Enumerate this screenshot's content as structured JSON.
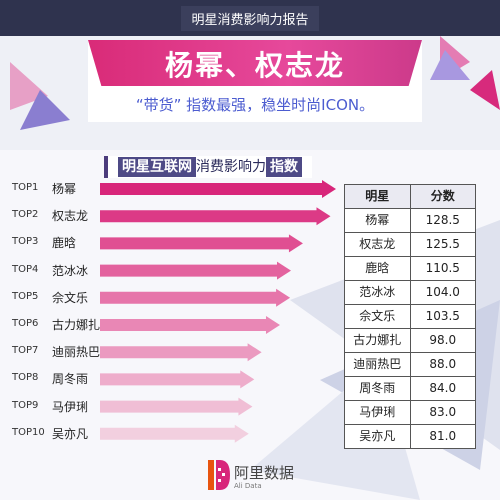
{
  "header": {
    "report_title": "明星消费影响力报告",
    "headline": "杨幂、权志龙",
    "subline": "“带货” 指数最强，稳坐时尚ICON。"
  },
  "chart_data": {
    "type": "bar",
    "title": "明星互联网消费影响力指数",
    "title_emphasis": "明星互联网",
    "title_rest": "消费影响力",
    "title_end": "指数",
    "ranks": [
      "TOP1",
      "TOP2",
      "TOP3",
      "TOP4",
      "TOP5",
      "TOP6",
      "TOP7",
      "TOP8",
      "TOP9",
      "TOP10"
    ],
    "categories": [
      "杨幂",
      "权志龙",
      "鹿晗",
      "范冰冰",
      "佘文乐",
      "古力娜扎",
      "迪丽热巴",
      "周冬雨",
      "马伊琍",
      "吴亦凡"
    ],
    "values": [
      128.5,
      125.5,
      110.5,
      104.0,
      103.5,
      98.0,
      88.0,
      84.0,
      83.0,
      81.0
    ],
    "colors": [
      "#d8267a",
      "#dc3a86",
      "#e04f92",
      "#e3629e",
      "#e675aa",
      "#e987b5",
      "#eb9ac0",
      "#eeadcb",
      "#f0bed5",
      "#f2cfdf"
    ],
    "table": {
      "headers": [
        "明星",
        "分数"
      ],
      "rows": [
        [
          "杨幂",
          "128.5"
        ],
        [
          "权志龙",
          "125.5"
        ],
        [
          "鹿晗",
          "110.5"
        ],
        [
          "范冰冰",
          "104.0"
        ],
        [
          "佘文乐",
          "103.5"
        ],
        [
          "古力娜扎",
          "98.0"
        ],
        [
          "迪丽热巴",
          "88.0"
        ],
        [
          "周冬雨",
          "84.0"
        ],
        [
          "马伊琍",
          "83.0"
        ],
        [
          "吴亦凡",
          "81.0"
        ]
      ]
    }
  },
  "logo": {
    "name": "阿里数据",
    "sub": "Ali Data",
    "colors": [
      "#e8540f",
      "#d8267a"
    ]
  }
}
